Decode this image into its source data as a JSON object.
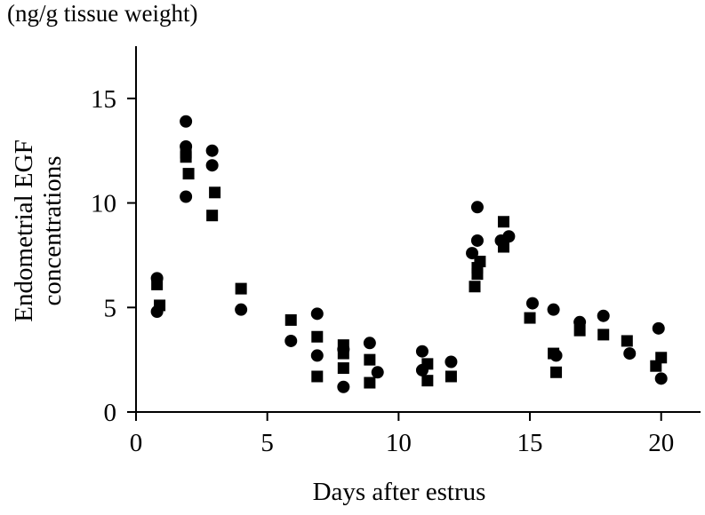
{
  "chart_data": {
    "type": "scatter",
    "unit_label": "(ng/g tissue weight)",
    "xlabel": "Days after estrus",
    "ylabel_lines": [
      "Endometrial EGF",
      "concentrations"
    ],
    "xlim": [
      0,
      21.5
    ],
    "ylim": [
      0,
      17.5
    ],
    "xticks": [
      0,
      5,
      10,
      15,
      20
    ],
    "yticks": [
      0,
      5,
      10,
      15
    ],
    "grid": false,
    "series": [
      {
        "marker": "circle",
        "color": "#000000",
        "points": [
          [
            0.8,
            6.4
          ],
          [
            0.8,
            4.8
          ],
          [
            1.9,
            13.9
          ],
          [
            1.9,
            12.7
          ],
          [
            1.9,
            10.3
          ],
          [
            2.9,
            12.5
          ],
          [
            2.9,
            11.8
          ],
          [
            4.0,
            4.9
          ],
          [
            5.9,
            3.4
          ],
          [
            6.9,
            4.7
          ],
          [
            6.9,
            2.7
          ],
          [
            7.9,
            3.0
          ],
          [
            7.9,
            1.2
          ],
          [
            8.9,
            3.3
          ],
          [
            9.2,
            1.9
          ],
          [
            10.9,
            2.9
          ],
          [
            10.9,
            2.0
          ],
          [
            12.0,
            2.4
          ],
          [
            12.8,
            7.6
          ],
          [
            13.0,
            9.8
          ],
          [
            13.0,
            8.2
          ],
          [
            13.9,
            8.2
          ],
          [
            14.2,
            8.4
          ],
          [
            15.1,
            5.2
          ],
          [
            15.9,
            4.9
          ],
          [
            16.0,
            2.7
          ],
          [
            16.9,
            4.3
          ],
          [
            17.8,
            4.6
          ],
          [
            18.8,
            2.8
          ],
          [
            19.9,
            4.0
          ],
          [
            20.0,
            1.6
          ]
        ]
      },
      {
        "marker": "square",
        "color": "#000000",
        "points": [
          [
            0.8,
            6.1
          ],
          [
            0.9,
            5.1
          ],
          [
            1.9,
            12.4
          ],
          [
            1.9,
            12.2
          ],
          [
            2.0,
            11.4
          ],
          [
            3.0,
            10.5
          ],
          [
            2.9,
            9.4
          ],
          [
            4.0,
            5.9
          ],
          [
            5.9,
            4.4
          ],
          [
            6.9,
            3.6
          ],
          [
            6.9,
            1.7
          ],
          [
            7.9,
            3.2
          ],
          [
            7.9,
            2.8
          ],
          [
            7.9,
            2.1
          ],
          [
            8.9,
            2.5
          ],
          [
            8.9,
            1.4
          ],
          [
            11.1,
            2.3
          ],
          [
            11.1,
            1.5
          ],
          [
            12.0,
            1.7
          ],
          [
            13.0,
            6.9
          ],
          [
            13.1,
            7.2
          ],
          [
            13.0,
            6.6
          ],
          [
            12.9,
            6.0
          ],
          [
            14.0,
            9.1
          ],
          [
            14.0,
            7.9
          ],
          [
            15.0,
            4.5
          ],
          [
            15.9,
            2.8
          ],
          [
            16.0,
            1.9
          ],
          [
            16.9,
            3.9
          ],
          [
            17.8,
            3.7
          ],
          [
            18.7,
            3.4
          ],
          [
            19.8,
            2.2
          ],
          [
            20.0,
            2.6
          ]
        ]
      }
    ]
  }
}
